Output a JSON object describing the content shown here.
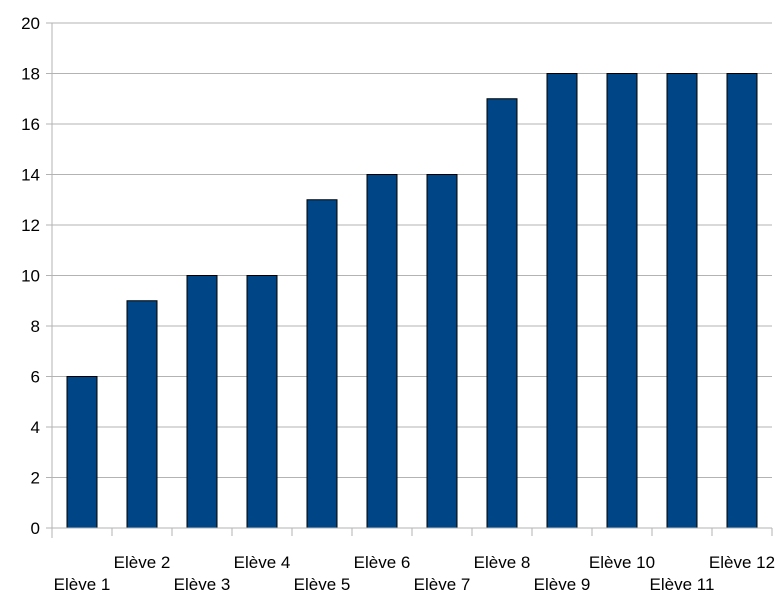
{
  "chart_data": {
    "type": "bar",
    "categories": [
      "Elève 1",
      "Elève 2",
      "Elève 3",
      "Elève 4",
      "Elève 5",
      "Elève 6",
      "Elève 7",
      "Elève 8",
      "Elève 9",
      "Elève 10",
      "Elève 11",
      "Elève 12"
    ],
    "values": [
      6,
      9,
      10,
      10,
      13,
      14,
      14,
      17,
      18,
      18,
      18,
      18
    ],
    "title": "",
    "xlabel": "",
    "ylabel": "",
    "ylim": [
      0,
      20
    ],
    "yticks": [
      "0",
      "2",
      "4",
      "6",
      "8",
      "10",
      "12",
      "14",
      "16",
      "18",
      "20"
    ],
    "grid": "horizontal",
    "legend": "none",
    "bar_color": "#004586"
  }
}
